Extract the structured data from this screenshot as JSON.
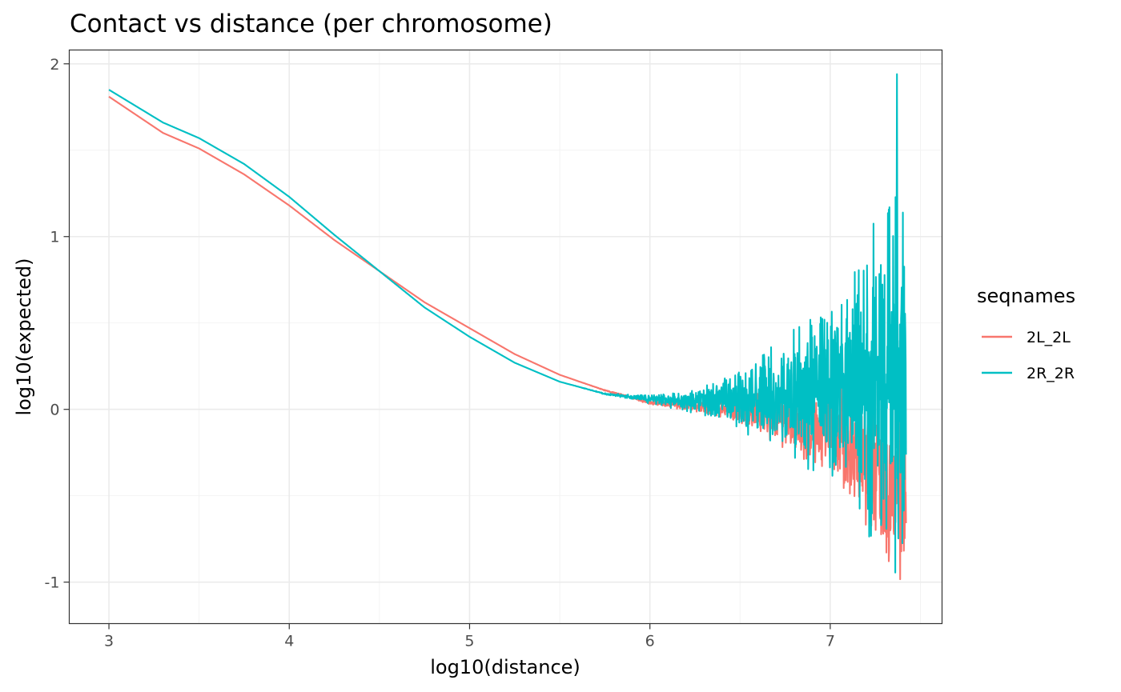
{
  "chart_data": {
    "type": "line",
    "title": "Contact vs distance (per chromosome)",
    "xlabel": "log10(distance)",
    "ylabel": "log10(expected)",
    "xlim": [
      2.78,
      7.62
    ],
    "ylim": [
      -1.24,
      2.08
    ],
    "x_ticks": [
      3,
      4,
      5,
      6,
      7
    ],
    "x_tick_labels": [
      "3",
      "4",
      "5",
      "6",
      "7"
    ],
    "x_minor_ticks": [
      3.5,
      4.5,
      5.5,
      6.5,
      7.5
    ],
    "y_ticks": [
      -1,
      0,
      1,
      2
    ],
    "y_tick_labels": [
      "-1",
      "0",
      "1",
      "2"
    ],
    "y_minor_ticks": [
      -0.5,
      0.5,
      1.5
    ],
    "grid": true,
    "legend": {
      "title": "seqnames",
      "position": "right"
    },
    "series": [
      {
        "name": "2L_2L",
        "color": "#F8766D",
        "points": [
          [
            3.0,
            1.81
          ],
          [
            3.3,
            1.6
          ],
          [
            3.5,
            1.51
          ],
          [
            3.75,
            1.36
          ],
          [
            4.0,
            1.18
          ],
          [
            4.25,
            0.98
          ],
          [
            4.5,
            0.8
          ],
          [
            4.75,
            0.62
          ],
          [
            5.0,
            0.47
          ],
          [
            5.25,
            0.32
          ],
          [
            5.5,
            0.2
          ],
          [
            5.75,
            0.11
          ],
          [
            6.0,
            0.04
          ],
          [
            6.25,
            0.02
          ],
          [
            6.5,
            -0.01
          ],
          [
            6.75,
            -0.06
          ],
          [
            7.0,
            -0.13
          ],
          [
            7.2,
            -0.26
          ],
          [
            7.36,
            -0.45
          ],
          [
            7.42,
            -0.4
          ]
        ],
        "noise_start": 5.35,
        "noise_end": 7.42,
        "noise_amplitude_max": 0.62
      },
      {
        "name": "2R_2R",
        "color": "#00BFC4",
        "points": [
          [
            3.0,
            1.85
          ],
          [
            3.3,
            1.66
          ],
          [
            3.5,
            1.57
          ],
          [
            3.75,
            1.42
          ],
          [
            4.0,
            1.23
          ],
          [
            4.25,
            1.01
          ],
          [
            4.5,
            0.8
          ],
          [
            4.75,
            0.59
          ],
          [
            5.0,
            0.42
          ],
          [
            5.25,
            0.27
          ],
          [
            5.5,
            0.16
          ],
          [
            5.75,
            0.09
          ],
          [
            6.0,
            0.06
          ],
          [
            6.25,
            0.05
          ],
          [
            6.5,
            0.06
          ],
          [
            6.75,
            0.08
          ],
          [
            7.0,
            0.1
          ],
          [
            7.2,
            0.12
          ],
          [
            7.36,
            0.15
          ],
          [
            7.42,
            0.1
          ]
        ],
        "noise_start": 5.4,
        "noise_end": 7.42,
        "noise_amplitude_max": 1.35,
        "peak": [
          7.37,
          1.94
        ]
      }
    ]
  }
}
